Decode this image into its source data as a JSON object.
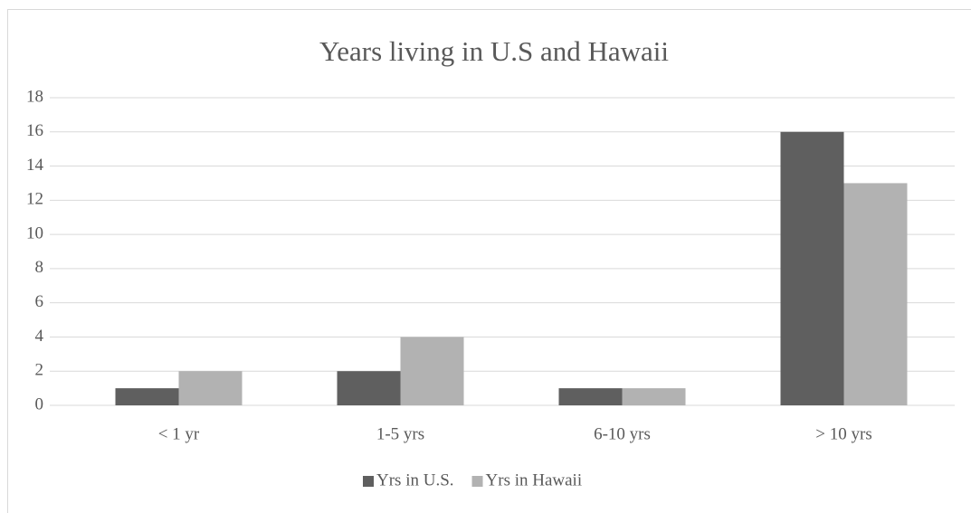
{
  "chart_data": {
    "type": "bar",
    "title": "Years living in U.S and Hawaii",
    "categories": [
      "< 1 yr",
      "1-5 yrs",
      "6-10 yrs",
      "> 10 yrs"
    ],
    "series": [
      {
        "name": "Yrs in U.S.",
        "color": "#5f5f5f",
        "values": [
          1,
          2,
          1,
          16
        ]
      },
      {
        "name": "Yrs in Hawaii",
        "color": "#b2b2b2",
        "values": [
          2,
          4,
          1,
          13
        ]
      }
    ],
    "ylim": [
      0,
      18
    ],
    "yticks": [
      0,
      2,
      4,
      6,
      8,
      10,
      12,
      14,
      16,
      18
    ],
    "grid": true,
    "legend": "bottom"
  }
}
